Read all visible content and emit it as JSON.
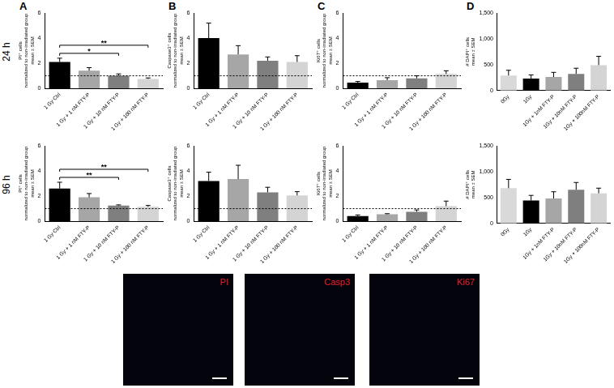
{
  "panel_letters": [
    "A",
    "B",
    "C",
    "D"
  ],
  "row_labels": [
    "24 h",
    "96 h"
  ],
  "chart_data": [
    {
      "type": "bar",
      "y_label": [
        "PI⁺ cells",
        "normalized to non-irradiated group",
        "mean ± SEM"
      ],
      "categories": [
        "1 Gy Ctrl",
        "1 Gy + 1 nM FTY-P",
        "1 Gy + 10 nM FTY-P",
        "1 Gy + 100 nM FTY-P"
      ],
      "values": [
        2.1,
        1.4,
        1.0,
        0.75
      ],
      "errors": [
        0.3,
        0.25,
        0.15,
        0.08
      ],
      "colors": [
        "#000000",
        "#a6a6a6",
        "#7f7f7f",
        "#d4d4d4"
      ],
      "ylim": [
        0,
        6
      ],
      "yticks": [
        0,
        2,
        4,
        6
      ],
      "grid": false,
      "reference_line": 1,
      "significance": [
        {
          "from": 0,
          "to": 2,
          "label": "*"
        },
        {
          "from": 0,
          "to": 3,
          "label": "**"
        }
      ]
    },
    {
      "type": "bar",
      "y_label": [
        "Caspase3⁺ cells",
        "normalized to non-irradiated group",
        "mean ± SEM"
      ],
      "categories": [
        "1 Gy Ctrl",
        "1 Gy + 1 nM FTY-P",
        "1 Gy + 10 nM FTY-P",
        "1 Gy + 100 nM FTY-P"
      ],
      "values": [
        4.0,
        2.7,
        2.2,
        2.1
      ],
      "errors": [
        1.2,
        0.7,
        0.3,
        0.5
      ],
      "colors": [
        "#000000",
        "#a6a6a6",
        "#7f7f7f",
        "#d4d4d4"
      ],
      "ylim": [
        0,
        6
      ],
      "yticks": [
        0,
        2,
        4,
        6
      ],
      "grid": false,
      "reference_line": 1
    },
    {
      "type": "bar",
      "y_label": [
        "Ki67⁺ cells",
        "normalized to non-irradiated group",
        "mean ± SEM"
      ],
      "categories": [
        "1 Gy Ctrl",
        "1 Gy + 1 nM FTY-P",
        "1 Gy + 10 nM FTY-P",
        "1 Gy + 100 nM FTY-P"
      ],
      "values": [
        0.45,
        0.65,
        0.8,
        1.15
      ],
      "errors": [
        0.1,
        0.2,
        0.2,
        0.25
      ],
      "colors": [
        "#000000",
        "#a6a6a6",
        "#7f7f7f",
        "#d4d4d4"
      ],
      "ylim": [
        0,
        6
      ],
      "yticks": [
        0,
        2,
        4,
        6
      ],
      "grid": false,
      "reference_line": 1
    },
    {
      "type": "bar",
      "y_label": [
        "# DAPI⁺ cells",
        "mean ± SEM"
      ],
      "categories": [
        "0Gy",
        "1Gy",
        "1Gy + 1nM FTY-P",
        "1Gy + 10nM FTY-P",
        "1Gy + 100nM FTY-P"
      ],
      "values": [
        290,
        230,
        260,
        320,
        490
      ],
      "errors": [
        100,
        70,
        90,
        110,
        170
      ],
      "colors": [
        "#d9d9d9",
        "#000000",
        "#a6a6a6",
        "#7f7f7f",
        "#d4d4d4"
      ],
      "ylim": [
        0,
        1500
      ],
      "yticks": [
        0,
        500,
        1000,
        1500
      ],
      "grid": false
    },
    {
      "type": "bar",
      "y_label": [
        "PI⁺ cells",
        "normalized to non-irradiated group",
        "mean ± SEM"
      ],
      "categories": [
        "1 Gy Ctrl",
        "1 Gy + 1 nM FTY-P",
        "1 Gy + 10 nM FTY-P",
        "1 Gy + 100 nM FTY-P"
      ],
      "values": [
        2.6,
        1.9,
        1.25,
        1.15
      ],
      "errors": [
        0.5,
        0.3,
        0.05,
        0.1
      ],
      "colors": [
        "#000000",
        "#a6a6a6",
        "#7f7f7f",
        "#d4d4d4"
      ],
      "ylim": [
        0,
        6
      ],
      "yticks": [
        0,
        2,
        4,
        6
      ],
      "grid": false,
      "reference_line": 1,
      "significance": [
        {
          "from": 0,
          "to": 2,
          "label": "**"
        },
        {
          "from": 0,
          "to": 3,
          "label": "**"
        }
      ]
    },
    {
      "type": "bar",
      "y_label": [
        "Caspase3⁺ cells",
        "normalized to non-irradiated group",
        "mean ± SEM"
      ],
      "categories": [
        "1 Gy Ctrl",
        "1 Gy + 1 nM FTY-P",
        "1 Gy + 10 nM FTY-P",
        "1 Gy + 100 nM FTY-P"
      ],
      "values": [
        3.2,
        3.35,
        2.3,
        2.05
      ],
      "errors": [
        0.7,
        1.1,
        0.4,
        0.3
      ],
      "colors": [
        "#000000",
        "#a6a6a6",
        "#7f7f7f",
        "#d4d4d4"
      ],
      "ylim": [
        0,
        6
      ],
      "yticks": [
        0,
        2,
        4,
        6
      ],
      "grid": false,
      "reference_line": 1
    },
    {
      "type": "bar",
      "y_label": [
        "Ki67⁺ cells",
        "normalized to non-irradiated group",
        "mean ± SEM"
      ],
      "categories": [
        "1 Gy Ctrl",
        "1 Gy + 1 nM FTY-P",
        "1 Gy + 10 nM FTY-P",
        "1 Gy + 100 nM FTY-P"
      ],
      "values": [
        0.4,
        0.55,
        0.75,
        1.2
      ],
      "errors": [
        0.1,
        0.05,
        0.15,
        0.4
      ],
      "colors": [
        "#000000",
        "#a6a6a6",
        "#7f7f7f",
        "#d4d4d4"
      ],
      "ylim": [
        0,
        6
      ],
      "yticks": [
        0,
        2,
        4,
        6
      ],
      "grid": false,
      "reference_line": 1
    },
    {
      "type": "bar",
      "y_label": [
        "# DAPI⁺ cells",
        "mean ± SEM"
      ],
      "categories": [
        "0Gy",
        "1Gy",
        "1Gy + 1nM FTY-P",
        "1Gy + 10nM FTY-P",
        "1Gy + 100nM FTY-P"
      ],
      "values": [
        680,
        440,
        480,
        650,
        580
      ],
      "errors": [
        170,
        100,
        130,
        140,
        100
      ],
      "colors": [
        "#d9d9d9",
        "#000000",
        "#a6a6a6",
        "#7f7f7f",
        "#d4d4d4"
      ],
      "ylim": [
        0,
        1500
      ],
      "yticks": [
        0,
        500,
        1000,
        1500
      ],
      "grid": false
    }
  ],
  "images": [
    {
      "label": "PI"
    },
    {
      "label": "Casp3"
    },
    {
      "label": "Ki67"
    }
  ]
}
